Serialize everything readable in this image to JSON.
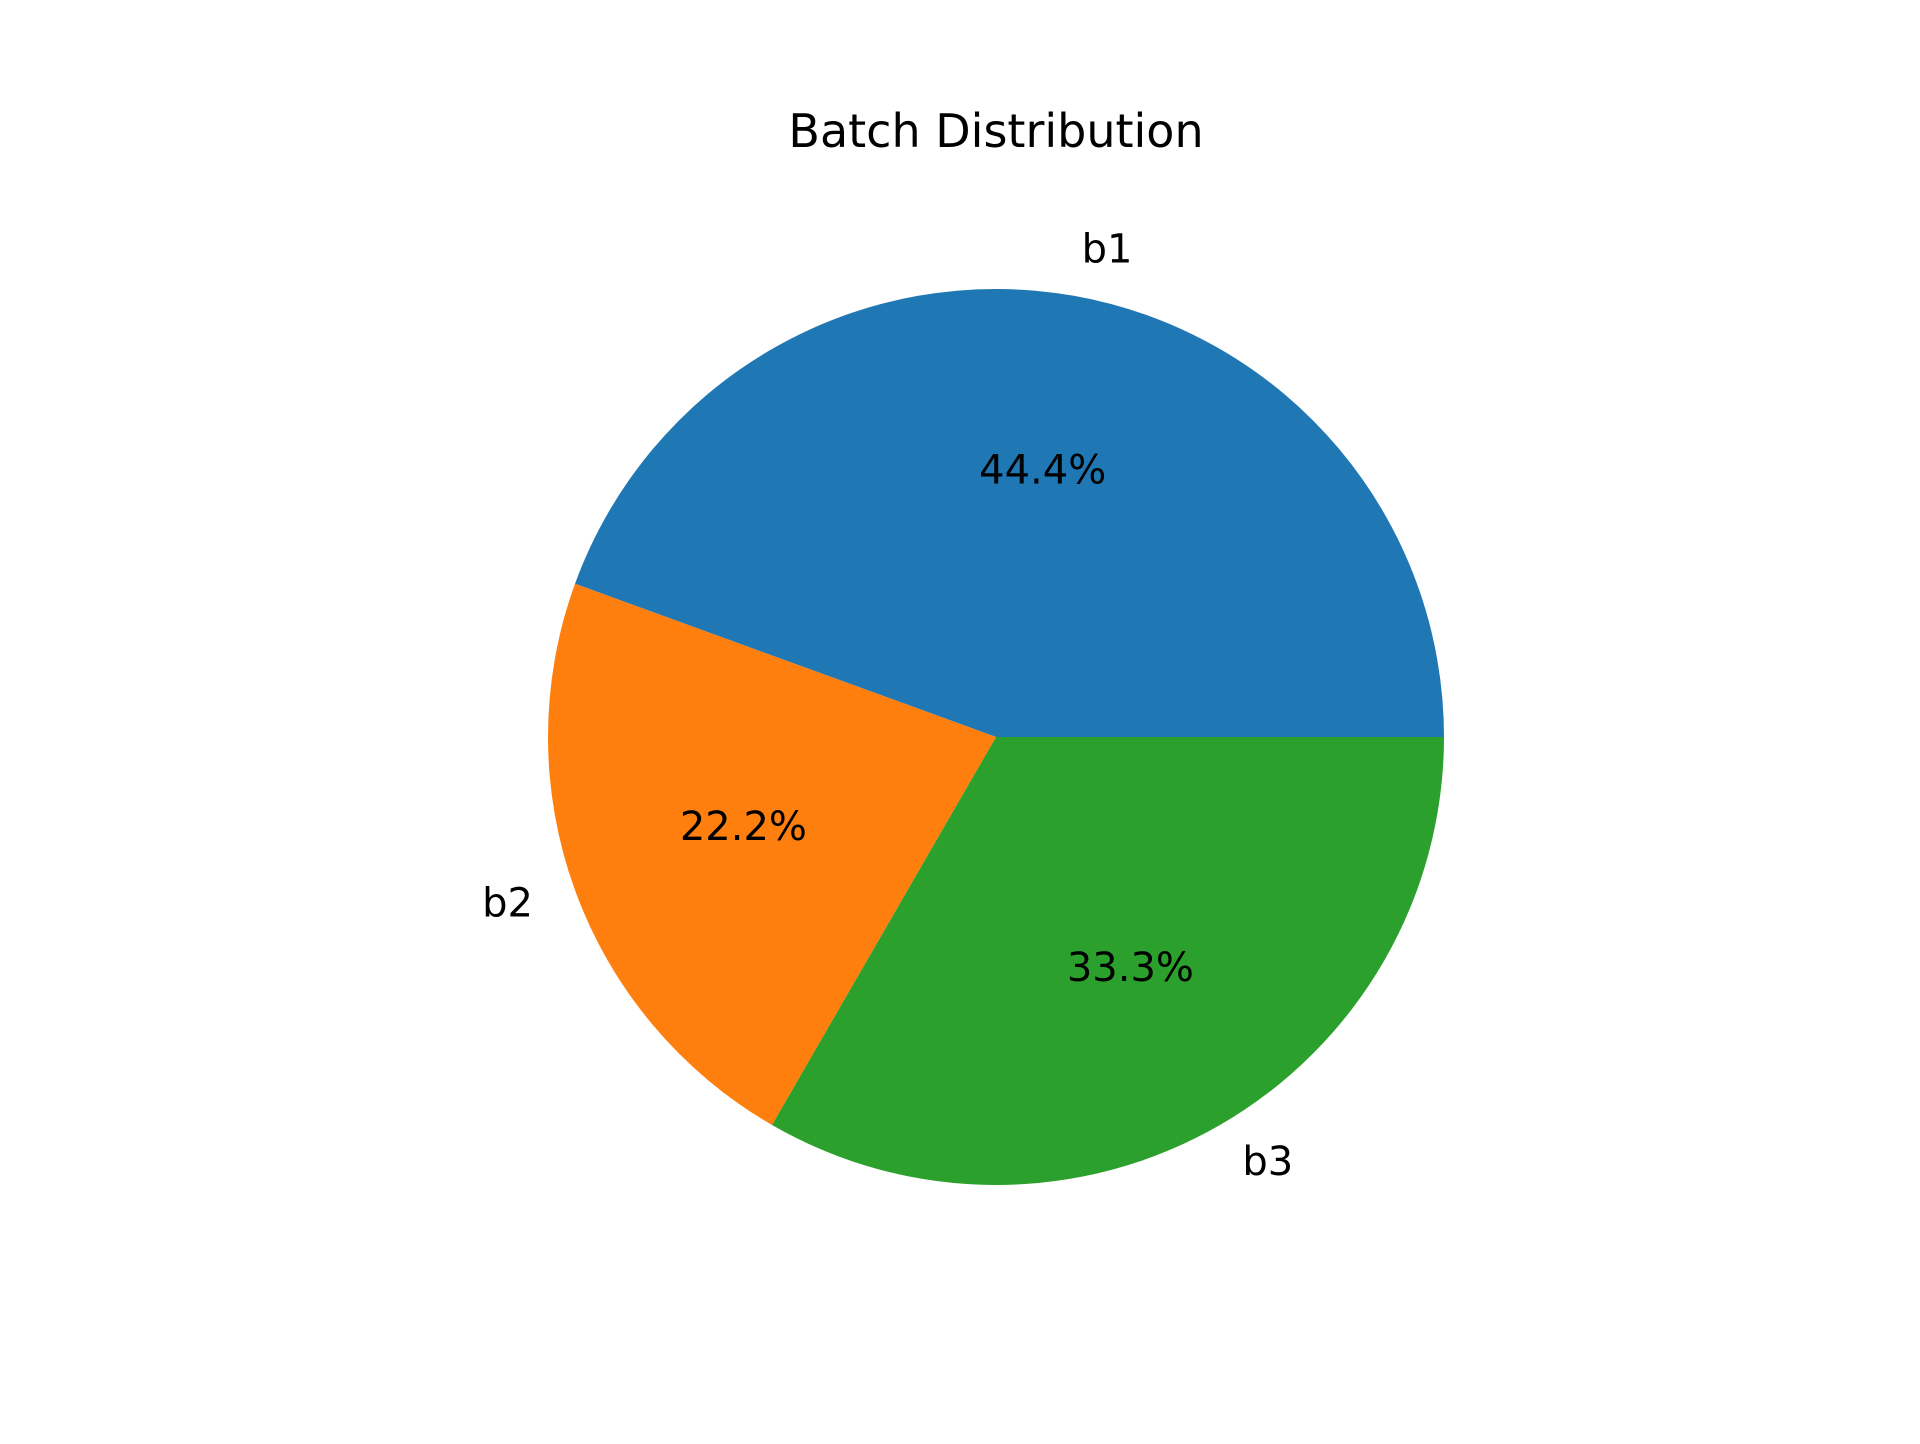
{
  "chart_data": {
    "type": "pie",
    "title": "Batch Distribution",
    "labels": [
      "b1",
      "b2",
      "b3"
    ],
    "values": [
      44.4,
      22.2,
      33.3
    ],
    "value_labels": [
      "44.4%",
      "22.2%",
      "33.3%"
    ],
    "colors": [
      "#1f77b4",
      "#ff7f0e",
      "#2ca02c"
    ],
    "start_angle_deg": 0,
    "direction": "counterclockwise",
    "legend": "none"
  }
}
